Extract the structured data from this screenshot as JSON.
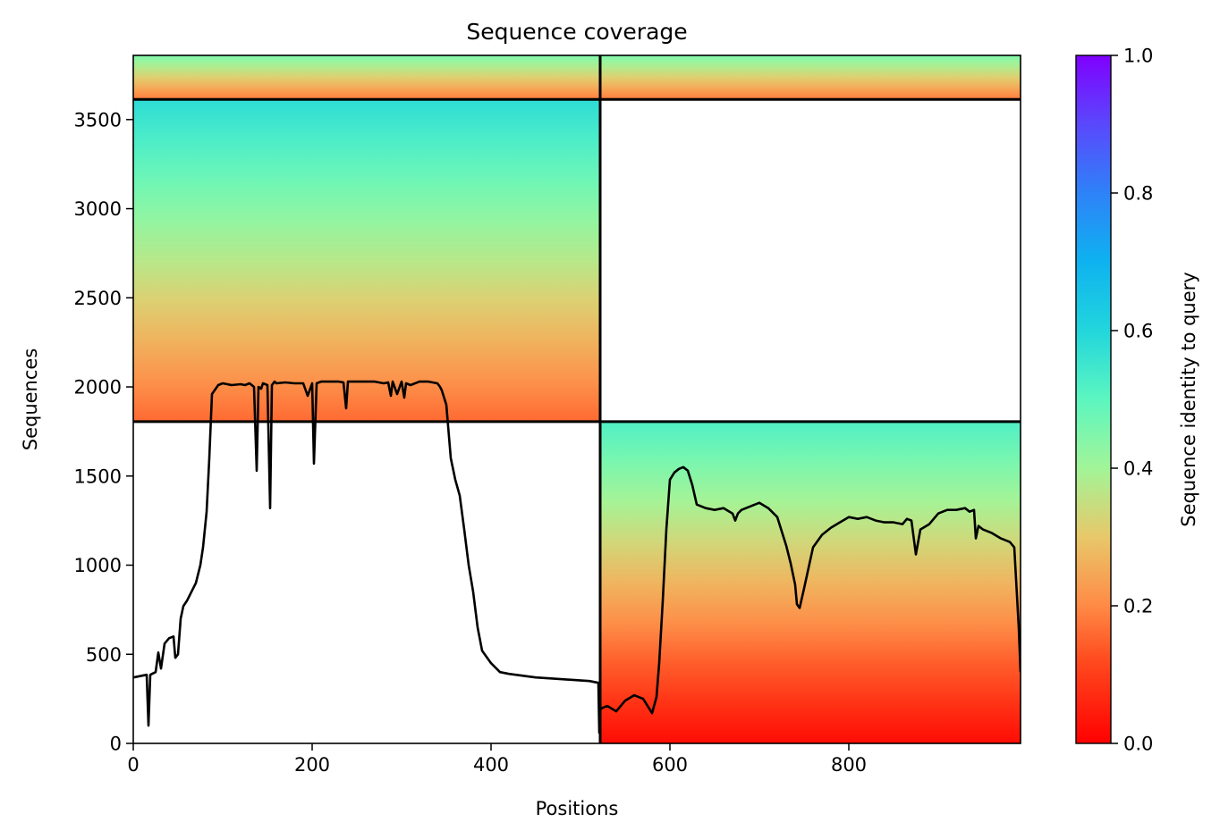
{
  "chart_data": {
    "type": "heatmap",
    "title": "Sequence coverage",
    "xlabel": "Positions",
    "ylabel": "Sequences",
    "xlim": [
      0,
      992
    ],
    "ylim": [
      0,
      3860
    ],
    "xticks": [
      0,
      200,
      400,
      600,
      800
    ],
    "yticks": [
      0,
      500,
      1000,
      1500,
      2000,
      2500,
      3000,
      3500
    ],
    "grid": false,
    "colorbar": {
      "label": "Sequence identity to query",
      "colormap": "rainbow_r",
      "range": [
        0,
        1
      ],
      "ticks": [
        0.0,
        0.2,
        0.4,
        0.6,
        0.8,
        1.0
      ],
      "tick_labels": [
        "0.0",
        "0.2",
        "0.4",
        "0.6",
        "0.8",
        "1.0"
      ]
    },
    "block_boundaries": {
      "x": 522,
      "y": [
        1805,
        3613
      ]
    },
    "coverage_blocks": [
      {
        "x": [
          0,
          522
        ],
        "rows": [
          1805,
          3613
        ],
        "identity_bottom": 0.16,
        "identity_top": 0.58
      },
      {
        "x": [
          0,
          522
        ],
        "rows": [
          3613,
          3860
        ],
        "identity_bottom": 0.18,
        "identity_top": 0.45
      },
      {
        "x": [
          522,
          992
        ],
        "rows": [
          0,
          1805
        ],
        "identity_bottom": 0.02,
        "identity_top": 0.52
      },
      {
        "x": [
          522,
          992
        ],
        "rows": [
          3613,
          3860
        ],
        "identity_bottom": 0.18,
        "identity_top": 0.45
      }
    ],
    "coverage_line": {
      "color": "#000000",
      "x": [
        0,
        10,
        15,
        17,
        19,
        25,
        28,
        31,
        35,
        40,
        45,
        47,
        50,
        53,
        56,
        60,
        65,
        70,
        75,
        78,
        82,
        85,
        88,
        95,
        100,
        110,
        120,
        125,
        130,
        135,
        138,
        140,
        143,
        145,
        150,
        153,
        155,
        158,
        160,
        170,
        180,
        190,
        195,
        200,
        202,
        205,
        210,
        220,
        230,
        235,
        238,
        240,
        250,
        260,
        270,
        280,
        285,
        288,
        290,
        295,
        300,
        303,
        305,
        310,
        320,
        330,
        340,
        343,
        345,
        350,
        355,
        360,
        365,
        370,
        375,
        380,
        385,
        390,
        400,
        410,
        420,
        450,
        480,
        510,
        520,
        521,
        522,
        525,
        530,
        540,
        550,
        560,
        570,
        580,
        585,
        588,
        592,
        596,
        600,
        605,
        610,
        615,
        620,
        625,
        630,
        640,
        650,
        660,
        670,
        673,
        676,
        680,
        690,
        700,
        710,
        720,
        730,
        735,
        740,
        742,
        745,
        750,
        760,
        770,
        780,
        790,
        800,
        810,
        820,
        830,
        840,
        850,
        860,
        865,
        870,
        875,
        880,
        890,
        900,
        910,
        920,
        930,
        935,
        940,
        942,
        945,
        950,
        960,
        970,
        980,
        985,
        990,
        992
      ],
      "y": [
        370,
        380,
        385,
        100,
        385,
        400,
        510,
        420,
        560,
        590,
        600,
        480,
        500,
        700,
        770,
        800,
        850,
        900,
        1000,
        1100,
        1300,
        1600,
        1960,
        2010,
        2020,
        2010,
        2015,
        2010,
        2020,
        2000,
        1530,
        2000,
        1990,
        2020,
        2010,
        1320,
        2010,
        2030,
        2020,
        2025,
        2020,
        2020,
        1950,
        2020,
        1570,
        2020,
        2030,
        2030,
        2030,
        2025,
        1880,
        2030,
        2030,
        2030,
        2030,
        2020,
        2025,
        1950,
        2030,
        1960,
        2030,
        1940,
        2020,
        2010,
        2030,
        2030,
        2020,
        2000,
        1980,
        1900,
        1600,
        1480,
        1390,
        1200,
        1000,
        850,
        650,
        520,
        450,
        400,
        390,
        370,
        360,
        350,
        340,
        60,
        190,
        200,
        210,
        180,
        240,
        270,
        250,
        170,
        260,
        450,
        800,
        1200,
        1480,
        1520,
        1540,
        1550,
        1530,
        1450,
        1340,
        1320,
        1310,
        1320,
        1290,
        1250,
        1290,
        1310,
        1330,
        1350,
        1320,
        1270,
        1110,
        1010,
        890,
        780,
        760,
        870,
        1100,
        1170,
        1210,
        1240,
        1270,
        1260,
        1270,
        1250,
        1240,
        1240,
        1230,
        1260,
        1250,
        1060,
        1200,
        1230,
        1290,
        1310,
        1310,
        1320,
        1300,
        1310,
        1150,
        1220,
        1200,
        1180,
        1150,
        1130,
        1100,
        650,
        400
      ]
    }
  }
}
